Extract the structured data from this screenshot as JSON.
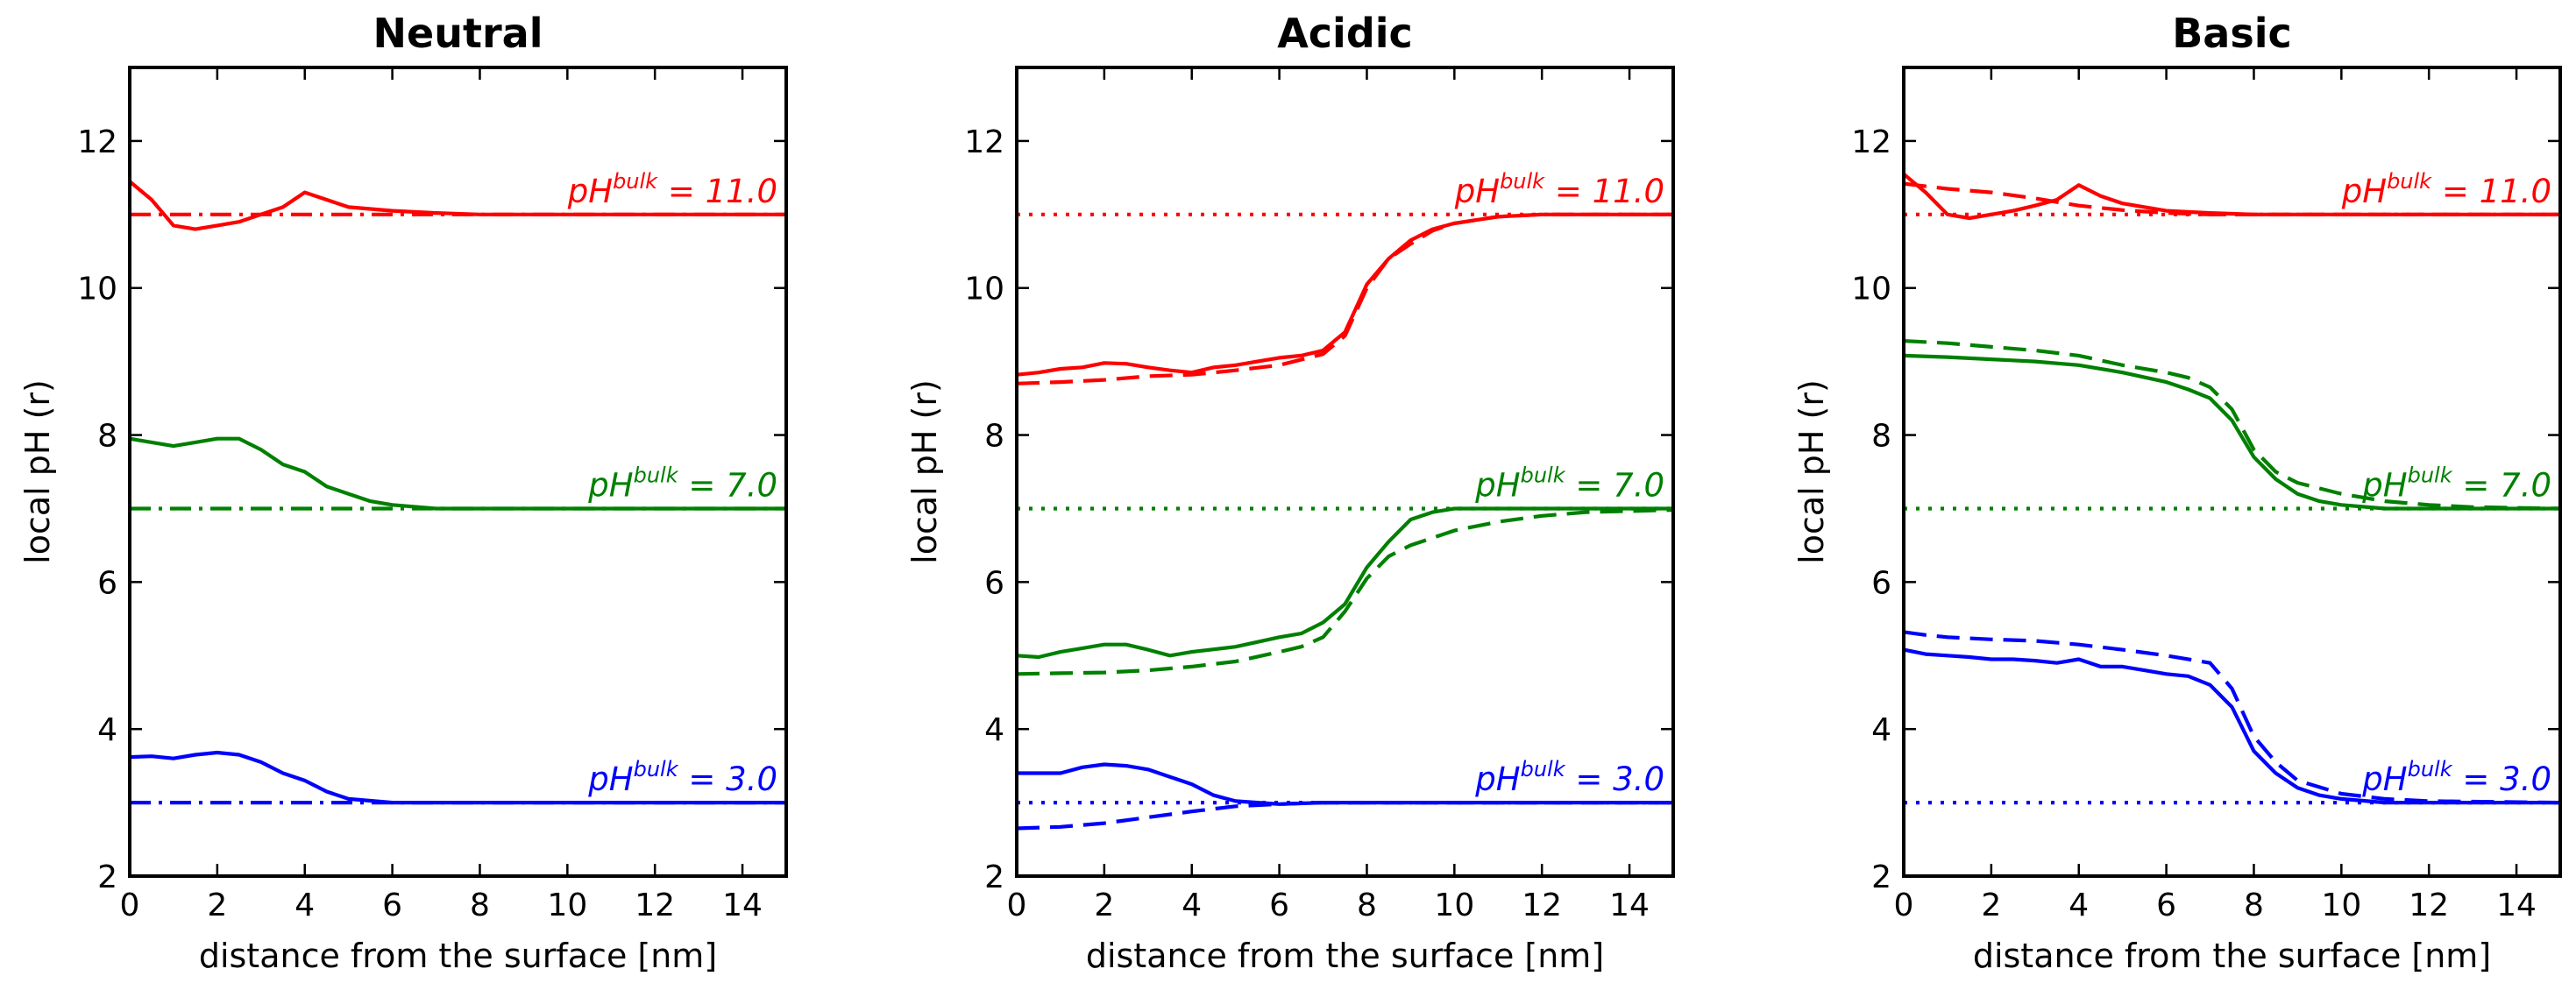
{
  "chart_data": [
    {
      "type": "line",
      "title": "Neutral",
      "xlabel": "distance from the surface [nm]",
      "ylabel": "local pH (r)",
      "xlim": [
        0,
        15
      ],
      "ylim": [
        2,
        13
      ],
      "xticks": [
        0,
        2,
        4,
        6,
        8,
        10,
        12,
        14
      ],
      "yticks": [
        2,
        4,
        6,
        8,
        10,
        12
      ],
      "grid": false,
      "annotations": [
        {
          "prefix": "pH",
          "sup": "bulk",
          "suffix": " = 11.0",
          "y": 11.0,
          "color": "#ff0000"
        },
        {
          "prefix": "pH",
          "sup": "bulk",
          "suffix": " = 7.0",
          "y": 7.0,
          "color": "#008000"
        },
        {
          "prefix": "pH",
          "sup": "bulk",
          "suffix": " = 3.0",
          "y": 3.0,
          "color": "#0000ff"
        }
      ],
      "series": [
        {
          "name": "pH11 solid",
          "color": "#ff0000",
          "style": "solid",
          "x": [
            0,
            0.5,
            1,
            1.5,
            2,
            2.5,
            3,
            3.5,
            4,
            4.5,
            5,
            6,
            7,
            8,
            10,
            15
          ],
          "y": [
            11.45,
            11.2,
            10.85,
            10.8,
            10.85,
            10.9,
            11.0,
            11.1,
            11.3,
            11.2,
            11.1,
            11.05,
            11.02,
            11.0,
            11.0,
            11.0
          ]
        },
        {
          "name": "pH11 dashdot",
          "color": "#ff0000",
          "style": "dashdot",
          "x": [
            0,
            15
          ],
          "y": [
            11.0,
            11.0
          ]
        },
        {
          "name": "pH7 solid",
          "color": "#008000",
          "style": "solid",
          "x": [
            0,
            0.5,
            1,
            1.5,
            2,
            2.5,
            3,
            3.5,
            4,
            4.5,
            5,
            5.5,
            6,
            7,
            8,
            10,
            15
          ],
          "y": [
            7.95,
            7.9,
            7.85,
            7.9,
            7.95,
            7.95,
            7.8,
            7.6,
            7.5,
            7.3,
            7.2,
            7.1,
            7.05,
            7.0,
            7.0,
            7.0,
            7.0
          ]
        },
        {
          "name": "pH7 dashdot",
          "color": "#008000",
          "style": "dashdot",
          "x": [
            0,
            15
          ],
          "y": [
            7.0,
            7.0
          ]
        },
        {
          "name": "pH3 solid",
          "color": "#0000ff",
          "style": "solid",
          "x": [
            0,
            0.5,
            1,
            1.5,
            2,
            2.5,
            3,
            3.5,
            4,
            4.5,
            5,
            6,
            7,
            8,
            15
          ],
          "y": [
            3.62,
            3.63,
            3.6,
            3.65,
            3.68,
            3.65,
            3.55,
            3.4,
            3.3,
            3.15,
            3.05,
            3.0,
            3.0,
            3.0,
            3.0
          ]
        },
        {
          "name": "pH3 dashdot",
          "color": "#0000ff",
          "style": "dashdot",
          "x": [
            0,
            15
          ],
          "y": [
            3.0,
            3.0
          ]
        }
      ]
    },
    {
      "type": "line",
      "title": "Acidic",
      "xlabel": "distance from the surface [nm]",
      "ylabel": "local pH (r)",
      "xlim": [
        0,
        15
      ],
      "ylim": [
        2,
        13
      ],
      "xticks": [
        0,
        2,
        4,
        6,
        8,
        10,
        12,
        14
      ],
      "yticks": [
        2,
        4,
        6,
        8,
        10,
        12
      ],
      "grid": false,
      "annotations": [
        {
          "prefix": "pH",
          "sup": "bulk",
          "suffix": " = 11.0",
          "y": 11.0,
          "color": "#ff0000"
        },
        {
          "prefix": "pH",
          "sup": "bulk",
          "suffix": " = 7.0",
          "y": 7.0,
          "color": "#008000"
        },
        {
          "prefix": "pH",
          "sup": "bulk",
          "suffix": " = 3.0",
          "y": 3.0,
          "color": "#0000ff"
        }
      ],
      "series": [
        {
          "name": "pH11 solid",
          "color": "#ff0000",
          "style": "solid",
          "x": [
            0,
            0.5,
            1,
            1.5,
            2,
            2.5,
            3,
            3.5,
            4,
            4.5,
            5,
            5.5,
            6,
            6.5,
            7,
            7.5,
            8,
            8.5,
            9,
            9.5,
            10,
            11,
            12,
            15
          ],
          "y": [
            8.82,
            8.85,
            8.9,
            8.92,
            8.98,
            8.97,
            8.92,
            8.88,
            8.85,
            8.92,
            8.95,
            9.0,
            9.05,
            9.08,
            9.15,
            9.4,
            10.05,
            10.4,
            10.65,
            10.8,
            10.88,
            10.97,
            11.0,
            11.0
          ]
        },
        {
          "name": "pH11 dashed",
          "color": "#ff0000",
          "style": "dashed",
          "x": [
            0,
            1,
            2,
            3,
            4,
            5,
            6,
            7,
            7.5,
            8,
            8.5,
            9,
            9.5,
            10,
            11,
            12,
            15
          ],
          "y": [
            8.7,
            8.72,
            8.75,
            8.8,
            8.82,
            8.88,
            8.95,
            9.1,
            9.35,
            10.0,
            10.4,
            10.6,
            10.78,
            10.88,
            10.97,
            11.0,
            11.0
          ]
        },
        {
          "name": "pH11 dotted",
          "color": "#ff0000",
          "style": "dotted",
          "x": [
            0,
            15
          ],
          "y": [
            11.0,
            11.0
          ]
        },
        {
          "name": "pH7 solid",
          "color": "#008000",
          "style": "solid",
          "x": [
            0,
            0.5,
            1,
            1.5,
            2,
            2.5,
            3,
            3.5,
            4,
            5,
            6,
            6.5,
            7,
            7.5,
            8,
            8.5,
            9,
            9.5,
            10,
            11,
            12,
            15
          ],
          "y": [
            5.0,
            4.98,
            5.05,
            5.1,
            5.15,
            5.15,
            5.08,
            5.0,
            5.05,
            5.12,
            5.25,
            5.3,
            5.45,
            5.7,
            6.2,
            6.55,
            6.85,
            6.95,
            7.0,
            7.0,
            7.0,
            7.0
          ]
        },
        {
          "name": "pH7 dashed",
          "color": "#008000",
          "style": "dashed",
          "x": [
            0,
            1,
            2,
            3,
            4,
            5,
            6,
            6.5,
            7,
            7.5,
            8,
            8.5,
            9,
            10,
            11,
            12,
            13,
            15
          ],
          "y": [
            4.75,
            4.76,
            4.77,
            4.8,
            4.85,
            4.92,
            5.05,
            5.12,
            5.25,
            5.6,
            6.05,
            6.35,
            6.5,
            6.7,
            6.82,
            6.9,
            6.95,
            6.98
          ]
        },
        {
          "name": "pH7 dotted",
          "color": "#008000",
          "style": "dotted",
          "x": [
            0,
            15
          ],
          "y": [
            7.0,
            7.0
          ]
        },
        {
          "name": "pH3 solid",
          "color": "#0000ff",
          "style": "solid",
          "x": [
            0,
            0.5,
            1,
            1.5,
            2,
            2.5,
            3,
            3.5,
            4,
            4.5,
            5,
            5.5,
            6,
            7,
            8,
            15
          ],
          "y": [
            3.4,
            3.4,
            3.4,
            3.48,
            3.52,
            3.5,
            3.45,
            3.35,
            3.25,
            3.1,
            3.02,
            3.0,
            2.98,
            3.0,
            3.0,
            3.0
          ]
        },
        {
          "name": "pH3 dashed",
          "color": "#0000ff",
          "style": "dashed",
          "x": [
            0,
            1,
            2,
            3,
            4,
            5,
            6,
            7,
            8,
            15
          ],
          "y": [
            2.65,
            2.67,
            2.72,
            2.8,
            2.88,
            2.95,
            2.98,
            3.0,
            3.0,
            3.0
          ]
        },
        {
          "name": "pH3 dotted",
          "color": "#0000ff",
          "style": "dotted",
          "x": [
            0,
            15
          ],
          "y": [
            3.0,
            3.0
          ]
        }
      ]
    },
    {
      "type": "line",
      "title": "Basic",
      "xlabel": "distance from the surface [nm]",
      "ylabel": "local pH (r)",
      "xlim": [
        0,
        15
      ],
      "ylim": [
        2,
        13
      ],
      "xticks": [
        0,
        2,
        4,
        6,
        8,
        10,
        12,
        14
      ],
      "yticks": [
        2,
        4,
        6,
        8,
        10,
        12
      ],
      "grid": false,
      "annotations": [
        {
          "prefix": "pH",
          "sup": "bulk",
          "suffix": " = 11.0",
          "y": 11.0,
          "color": "#ff0000"
        },
        {
          "prefix": "pH",
          "sup": "bulk",
          "suffix": " = 7.0",
          "y": 7.0,
          "color": "#008000"
        },
        {
          "prefix": "pH",
          "sup": "bulk",
          "suffix": " = 3.0",
          "y": 3.0,
          "color": "#0000ff"
        }
      ],
      "series": [
        {
          "name": "pH11 solid",
          "color": "#ff0000",
          "style": "solid",
          "x": [
            0,
            0.5,
            1,
            1.5,
            2,
            2.5,
            3,
            3.5,
            4,
            4.5,
            5,
            6,
            7,
            8,
            15
          ],
          "y": [
            11.55,
            11.3,
            11.0,
            10.95,
            11.0,
            11.05,
            11.12,
            11.2,
            11.4,
            11.25,
            11.15,
            11.05,
            11.02,
            11.0,
            11.0
          ]
        },
        {
          "name": "pH11 dashed",
          "color": "#ff0000",
          "style": "dashed",
          "x": [
            0,
            1,
            2,
            3,
            4,
            5,
            6,
            7,
            8,
            15
          ],
          "y": [
            11.42,
            11.35,
            11.3,
            11.22,
            11.12,
            11.06,
            11.02,
            11.0,
            11.0,
            11.0
          ]
        },
        {
          "name": "pH11 dotted",
          "color": "#ff0000",
          "style": "dotted",
          "x": [
            0,
            15
          ],
          "y": [
            11.0,
            11.0
          ]
        },
        {
          "name": "pH7 solid",
          "color": "#008000",
          "style": "solid",
          "x": [
            0,
            1,
            2,
            3,
            4,
            5,
            6,
            6.5,
            7,
            7.5,
            8,
            8.5,
            9,
            9.5,
            10,
            11,
            12,
            15
          ],
          "y": [
            9.08,
            9.06,
            9.03,
            9.0,
            8.95,
            8.85,
            8.72,
            8.62,
            8.5,
            8.2,
            7.7,
            7.4,
            7.2,
            7.1,
            7.05,
            7.0,
            7.0,
            7.0
          ]
        },
        {
          "name": "pH7 dashed",
          "color": "#008000",
          "style": "dashed",
          "x": [
            0,
            1,
            2,
            3,
            4,
            5,
            6,
            6.5,
            7,
            7.5,
            8,
            8.5,
            9,
            10,
            11,
            12,
            13,
            15
          ],
          "y": [
            9.28,
            9.25,
            9.2,
            9.15,
            9.08,
            8.95,
            8.85,
            8.78,
            8.65,
            8.35,
            7.8,
            7.5,
            7.35,
            7.2,
            7.1,
            7.05,
            7.02,
            7.0
          ]
        },
        {
          "name": "pH7 dotted",
          "color": "#008000",
          "style": "dotted",
          "x": [
            0,
            15
          ],
          "y": [
            7.0,
            7.0
          ]
        },
        {
          "name": "pH3 solid",
          "color": "#0000ff",
          "style": "solid",
          "x": [
            0,
            0.5,
            1,
            1.5,
            2,
            2.5,
            3,
            3.5,
            4,
            4.5,
            5,
            5.5,
            6,
            6.5,
            7,
            7.5,
            8,
            8.5,
            9,
            9.5,
            10,
            11,
            12,
            15
          ],
          "y": [
            5.08,
            5.02,
            5.0,
            4.98,
            4.95,
            4.95,
            4.93,
            4.9,
            4.95,
            4.85,
            4.85,
            4.8,
            4.75,
            4.72,
            4.6,
            4.3,
            3.7,
            3.4,
            3.2,
            3.1,
            3.05,
            3.0,
            3.0,
            3.0
          ]
        },
        {
          "name": "pH3 dashed",
          "color": "#0000ff",
          "style": "dashed",
          "x": [
            0,
            0.5,
            1,
            2,
            3,
            4,
            5,
            6,
            7,
            7.5,
            8,
            8.5,
            9,
            10,
            11,
            12,
            15
          ],
          "y": [
            5.32,
            5.28,
            5.25,
            5.22,
            5.2,
            5.15,
            5.08,
            5.0,
            4.9,
            4.55,
            3.9,
            3.55,
            3.3,
            3.12,
            3.05,
            3.02,
            3.0
          ]
        },
        {
          "name": "pH3 dotted",
          "color": "#0000ff",
          "style": "dotted",
          "x": [
            0,
            15
          ],
          "y": [
            3.0,
            3.0
          ]
        }
      ]
    }
  ]
}
